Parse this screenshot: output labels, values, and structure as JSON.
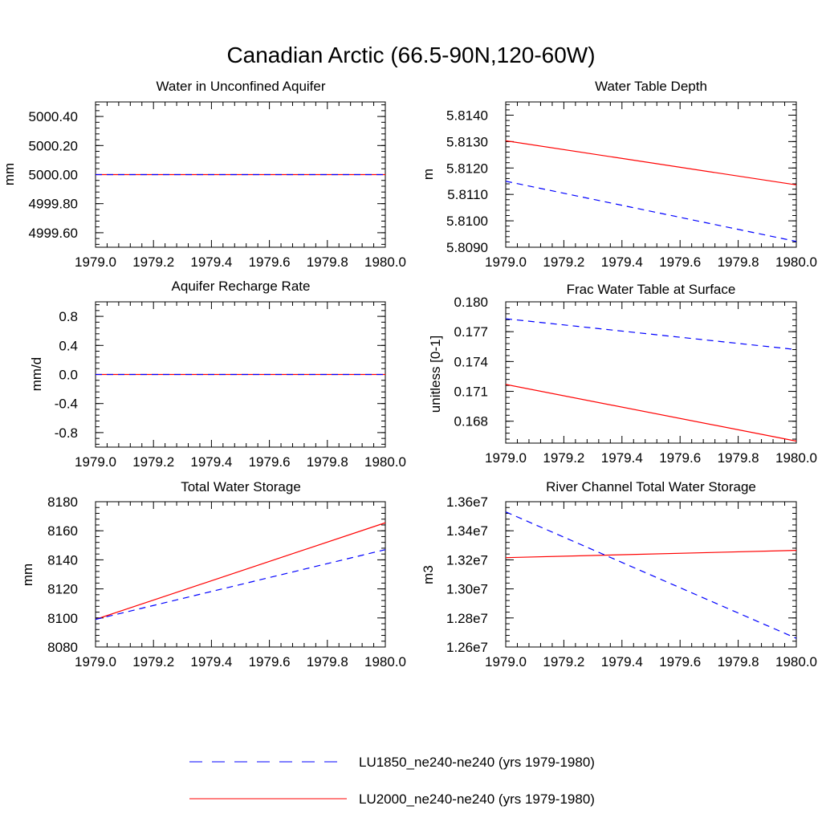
{
  "figure": {
    "title": "Canadian Arctic (66.5-90N,120-60W)"
  },
  "colors": {
    "lu1850": "#0000ff",
    "lu2000": "#ff0000",
    "axis": "#000000"
  },
  "legend": {
    "items": [
      {
        "label": "LU1850_ne240-ne240 (yrs 1979-1980)",
        "color": "#0000ff",
        "dash": "dashed"
      },
      {
        "label": "LU2000_ne240-ne240 (yrs 1979-1980)",
        "color": "#ff0000",
        "dash": "solid"
      }
    ]
  },
  "chart_data": [
    {
      "type": "line",
      "title": "Water in Unconfined Aquifer",
      "ylabel": "mm",
      "xlim": [
        1979.0,
        1980.0
      ],
      "ylim": [
        4999.5,
        5000.5
      ],
      "x_ticks": [
        1979.0,
        1979.2,
        1979.4,
        1979.6,
        1979.8,
        1980.0
      ],
      "x_tick_labels": [
        "1979.0",
        "1979.2",
        "1979.4",
        "1979.6",
        "1979.8",
        "1980.0"
      ],
      "y_ticks": [
        4999.6,
        4999.8,
        5000.0,
        5000.2,
        5000.4
      ],
      "y_tick_labels": [
        "4999.60",
        "4999.80",
        "5000.00",
        "5000.20",
        "5000.40"
      ],
      "y_minor_step": 0.04,
      "series": [
        {
          "legend": "LU2000",
          "color": "#ff0000",
          "dash": "solid",
          "x": [
            1979.0,
            1980.0
          ],
          "y": [
            5000.0,
            5000.0
          ]
        },
        {
          "legend": "LU1850",
          "color": "#0000ff",
          "dash": "dashed",
          "x": [
            1979.0,
            1980.0
          ],
          "y": [
            5000.0,
            5000.0
          ]
        }
      ]
    },
    {
      "type": "line",
      "title": "Water Table Depth",
      "ylabel": "m",
      "xlim": [
        1979.0,
        1980.0
      ],
      "ylim": [
        5.809,
        5.8145
      ],
      "x_ticks": [
        1979.0,
        1979.2,
        1979.4,
        1979.6,
        1979.8,
        1980.0
      ],
      "x_tick_labels": [
        "1979.0",
        "1979.2",
        "1979.4",
        "1979.6",
        "1979.8",
        "1980.0"
      ],
      "y_ticks": [
        5.809,
        5.81,
        5.811,
        5.812,
        5.813,
        5.814
      ],
      "y_tick_labels": [
        "5.8090",
        "5.8100",
        "5.8110",
        "5.8120",
        "5.8130",
        "5.8140"
      ],
      "y_minor_step": 0.0002,
      "series": [
        {
          "legend": "LU2000",
          "color": "#ff0000",
          "dash": "solid",
          "x": [
            1979.0,
            1980.0
          ],
          "y": [
            5.81303,
            5.81136
          ]
        },
        {
          "legend": "LU1850",
          "color": "#0000ff",
          "dash": "dashed",
          "x": [
            1979.0,
            1980.0
          ],
          "y": [
            5.8115,
            5.80922
          ]
        }
      ]
    },
    {
      "type": "line",
      "title": "Aquifer Recharge Rate",
      "ylabel": "mm/d",
      "xlim": [
        1979.0,
        1980.0
      ],
      "ylim": [
        -1.0,
        1.0
      ],
      "x_ticks": [
        1979.0,
        1979.2,
        1979.4,
        1979.6,
        1979.8,
        1980.0
      ],
      "x_tick_labels": [
        "1979.0",
        "1979.2",
        "1979.4",
        "1979.6",
        "1979.8",
        "1980.0"
      ],
      "y_ticks": [
        -0.8,
        -0.4,
        0.0,
        0.4,
        0.8
      ],
      "y_tick_labels": [
        "-0.8",
        "-0.4",
        "0.0",
        "0.4",
        "0.8"
      ],
      "y_minor_step": 0.08,
      "series": [
        {
          "legend": "LU2000",
          "color": "#ff0000",
          "dash": "solid",
          "x": [
            1979.0,
            1980.0
          ],
          "y": [
            0.0,
            0.0
          ]
        },
        {
          "legend": "LU1850",
          "color": "#0000ff",
          "dash": "dashed",
          "x": [
            1979.0,
            1980.0
          ],
          "y": [
            0.0,
            0.0
          ]
        }
      ]
    },
    {
      "type": "line",
      "title": "Frac Water Table at Surface",
      "ylabel": "unitless [0-1]",
      "xlim": [
        1979.0,
        1980.0
      ],
      "ylim": [
        0.1658,
        0.18
      ],
      "x_ticks": [
        1979.0,
        1979.2,
        1979.4,
        1979.6,
        1979.8,
        1980.0
      ],
      "x_tick_labels": [
        "1979.0",
        "1979.2",
        "1979.4",
        "1979.6",
        "1979.8",
        "1980.0"
      ],
      "y_ticks": [
        0.168,
        0.171,
        0.174,
        0.177,
        0.18
      ],
      "y_tick_labels": [
        "0.168",
        "0.171",
        "0.174",
        "0.177",
        "0.180"
      ],
      "y_minor_step": 0.0006,
      "series": [
        {
          "legend": "LU2000",
          "color": "#ff0000",
          "dash": "solid",
          "x": [
            1979.0,
            1980.0
          ],
          "y": [
            0.1717,
            0.166
          ]
        },
        {
          "legend": "LU1850",
          "color": "#0000ff",
          "dash": "dashed",
          "x": [
            1979.0,
            1980.0
          ],
          "y": [
            0.1783,
            0.1752
          ]
        }
      ]
    },
    {
      "type": "line",
      "title": "Total Water Storage",
      "ylabel": "mm",
      "xlim": [
        1979.0,
        1980.0
      ],
      "ylim": [
        8080,
        8180
      ],
      "x_ticks": [
        1979.0,
        1979.2,
        1979.4,
        1979.6,
        1979.8,
        1980.0
      ],
      "x_tick_labels": [
        "1979.0",
        "1979.2",
        "1979.4",
        "1979.6",
        "1979.8",
        "1980.0"
      ],
      "y_ticks": [
        8080,
        8100,
        8120,
        8140,
        8160,
        8180
      ],
      "y_tick_labels": [
        "8080",
        "8100",
        "8120",
        "8140",
        "8160",
        "8180"
      ],
      "y_minor_step": 4,
      "series": [
        {
          "legend": "LU2000",
          "color": "#ff0000",
          "dash": "solid",
          "x": [
            1979.0,
            1980.0
          ],
          "y": [
            8099.0,
            8165.5
          ]
        },
        {
          "legend": "LU1850",
          "color": "#0000ff",
          "dash": "dashed",
          "x": [
            1979.0,
            1980.0
          ],
          "y": [
            8099.0,
            8147.0
          ]
        }
      ]
    },
    {
      "type": "line",
      "title": "River Channel Total Water Storage",
      "ylabel": "m3",
      "xlim": [
        1979.0,
        1980.0
      ],
      "ylim": [
        12600000,
        13600000
      ],
      "x_ticks": [
        1979.0,
        1979.2,
        1979.4,
        1979.6,
        1979.8,
        1980.0
      ],
      "x_tick_labels": [
        "1979.0",
        "1979.2",
        "1979.4",
        "1979.6",
        "1979.8",
        "1980.0"
      ],
      "y_ticks": [
        12600000,
        12800000,
        13000000,
        13200000,
        13400000,
        13600000
      ],
      "y_tick_labels": [
        "1.26e7",
        "1.28e7",
        "1.30e7",
        "1.32e7",
        "1.34e7",
        "1.36e7"
      ],
      "y_minor_step": 40000,
      "series": [
        {
          "legend": "LU2000",
          "color": "#ff0000",
          "dash": "solid",
          "x": [
            1979.0,
            1980.0
          ],
          "y": [
            13215000,
            13265000
          ]
        },
        {
          "legend": "LU1850",
          "color": "#0000ff",
          "dash": "dashed",
          "x": [
            1979.0,
            1980.0
          ],
          "y": [
            13530000,
            12660000
          ]
        }
      ]
    }
  ]
}
